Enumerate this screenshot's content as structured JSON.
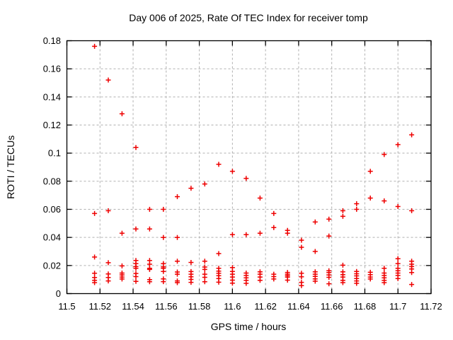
{
  "chart_data": {
    "type": "scatter",
    "title": "Day 006 of 2025, Rate Of TEC Index for receiver tomp",
    "xlabel": "GPS time / hours",
    "ylabel": "ROTI / TECUs",
    "xlim": [
      11.5,
      11.72
    ],
    "ylim": [
      0,
      0.18
    ],
    "xticks": [
      11.5,
      11.52,
      11.54,
      11.56,
      11.58,
      11.6,
      11.62,
      11.64,
      11.66,
      11.68,
      11.7,
      11.72
    ],
    "xtick_labels": [
      "11.5",
      "11.52",
      "11.54",
      "11.56",
      "11.58",
      "11.6",
      "11.62",
      "11.64",
      "11.66",
      "11.68",
      "11.7",
      "11.72"
    ],
    "yticks": [
      0,
      0.02,
      0.04,
      0.06,
      0.08,
      0.1,
      0.12,
      0.14,
      0.16,
      0.18
    ],
    "ytick_labels": [
      "0",
      "0.02",
      "0.04",
      "0.06",
      "0.08",
      "0.1",
      "0.12",
      "0.14",
      "0.16",
      "0.18"
    ],
    "grid": true,
    "legend": "none",
    "marker": "plus",
    "marker_color": "#ee0000",
    "grid_color": "#b0b0b0",
    "border_color": "#000000",
    "series": [
      {
        "name": "ROTI",
        "points": [
          [
            11.5167,
            0.176
          ],
          [
            11.5167,
            0.057
          ],
          [
            11.5167,
            0.026
          ],
          [
            11.5167,
            0.0145
          ],
          [
            11.5167,
            0.0115
          ],
          [
            11.5167,
            0.0095
          ],
          [
            11.5167,
            0.0078
          ],
          [
            11.525,
            0.152
          ],
          [
            11.525,
            0.059
          ],
          [
            11.525,
            0.022
          ],
          [
            11.525,
            0.014
          ],
          [
            11.525,
            0.0115
          ],
          [
            11.525,
            0.009
          ],
          [
            11.5333,
            0.128
          ],
          [
            11.5333,
            0.043
          ],
          [
            11.5333,
            0.0197
          ],
          [
            11.5333,
            0.0146
          ],
          [
            11.5333,
            0.0133
          ],
          [
            11.5333,
            0.0118
          ],
          [
            11.5333,
            0.0104
          ],
          [
            11.5417,
            0.104
          ],
          [
            11.5417,
            0.046
          ],
          [
            11.5417,
            0.0236
          ],
          [
            11.5417,
            0.0214
          ],
          [
            11.5417,
            0.0192
          ],
          [
            11.5417,
            0.018
          ],
          [
            11.5417,
            0.0143
          ],
          [
            11.5417,
            0.0121
          ],
          [
            11.5417,
            0.0087
          ],
          [
            11.55,
            0.06
          ],
          [
            11.55,
            0.046
          ],
          [
            11.55,
            0.0236
          ],
          [
            11.55,
            0.0209
          ],
          [
            11.55,
            0.018
          ],
          [
            11.55,
            0.0172
          ],
          [
            11.55,
            0.01
          ],
          [
            11.55,
            0.0084
          ],
          [
            11.5583,
            0.06
          ],
          [
            11.5583,
            0.04
          ],
          [
            11.5583,
            0.0214
          ],
          [
            11.5583,
            0.019
          ],
          [
            11.5583,
            0.018
          ],
          [
            11.5583,
            0.0158
          ],
          [
            11.5583,
            0.0105
          ],
          [
            11.5583,
            0.0085
          ],
          [
            11.5667,
            0.069
          ],
          [
            11.5667,
            0.04
          ],
          [
            11.5667,
            0.0231
          ],
          [
            11.5667,
            0.0154
          ],
          [
            11.5667,
            0.0138
          ],
          [
            11.5667,
            0.009
          ],
          [
            11.5667,
            0.0078
          ],
          [
            11.575,
            0.075
          ],
          [
            11.575,
            0.0222
          ],
          [
            11.575,
            0.0157
          ],
          [
            11.575,
            0.0138
          ],
          [
            11.575,
            0.012
          ],
          [
            11.575,
            0.0101
          ],
          [
            11.575,
            0.008
          ],
          [
            11.5833,
            0.078
          ],
          [
            11.5833,
            0.0231
          ],
          [
            11.5833,
            0.0189
          ],
          [
            11.5833,
            0.0172
          ],
          [
            11.5833,
            0.0138
          ],
          [
            11.5833,
            0.0116
          ],
          [
            11.5833,
            0.0084
          ],
          [
            11.5917,
            0.092
          ],
          [
            11.5917,
            0.0285
          ],
          [
            11.5917,
            0.018
          ],
          [
            11.5917,
            0.016
          ],
          [
            11.5917,
            0.0145
          ],
          [
            11.5917,
            0.0127
          ],
          [
            11.5917,
            0.0107
          ],
          [
            11.5917,
            0.0081
          ],
          [
            11.6,
            0.087
          ],
          [
            11.6,
            0.042
          ],
          [
            11.6,
            0.0185
          ],
          [
            11.6,
            0.0158
          ],
          [
            11.6,
            0.0138
          ],
          [
            11.6,
            0.0118
          ],
          [
            11.6,
            0.0096
          ],
          [
            11.6,
            0.0074
          ],
          [
            11.6083,
            0.082
          ],
          [
            11.6083,
            0.042
          ],
          [
            11.6083,
            0.0146
          ],
          [
            11.6083,
            0.0129
          ],
          [
            11.6083,
            0.0112
          ],
          [
            11.6083,
            0.0095
          ],
          [
            11.6083,
            0.0073
          ],
          [
            11.6167,
            0.068
          ],
          [
            11.6167,
            0.043
          ],
          [
            11.6167,
            0.0155
          ],
          [
            11.6167,
            0.0138
          ],
          [
            11.6167,
            0.0118
          ],
          [
            11.6167,
            0.0095
          ],
          [
            11.625,
            0.057
          ],
          [
            11.625,
            0.047
          ],
          [
            11.625,
            0.0138
          ],
          [
            11.625,
            0.0121
          ],
          [
            11.625,
            0.0104
          ],
          [
            11.6333,
            0.045
          ],
          [
            11.6333,
            0.043
          ],
          [
            11.6333,
            0.0151
          ],
          [
            11.6333,
            0.0138
          ],
          [
            11.6333,
            0.0127
          ],
          [
            11.6333,
            0.0117
          ],
          [
            11.6333,
            0.0096
          ],
          [
            11.6417,
            0.038
          ],
          [
            11.6417,
            0.033
          ],
          [
            11.6417,
            0.0145
          ],
          [
            11.6417,
            0.012
          ],
          [
            11.6417,
            0.008
          ],
          [
            11.6417,
            0.0057
          ],
          [
            11.65,
            0.051
          ],
          [
            11.65,
            0.03
          ],
          [
            11.65,
            0.0155
          ],
          [
            11.65,
            0.0138
          ],
          [
            11.65,
            0.0122
          ],
          [
            11.65,
            0.0105
          ],
          [
            11.65,
            0.0088
          ],
          [
            11.6583,
            0.053
          ],
          [
            11.6583,
            0.041
          ],
          [
            11.6583,
            0.0163
          ],
          [
            11.6583,
            0.015
          ],
          [
            11.6583,
            0.0133
          ],
          [
            11.6583,
            0.0116
          ],
          [
            11.6583,
            0.007
          ],
          [
            11.6667,
            0.059
          ],
          [
            11.6667,
            0.055
          ],
          [
            11.6667,
            0.0202
          ],
          [
            11.6667,
            0.0155
          ],
          [
            11.6667,
            0.0135
          ],
          [
            11.6667,
            0.0118
          ],
          [
            11.6667,
            0.0095
          ],
          [
            11.6667,
            0.0078
          ],
          [
            11.675,
            0.064
          ],
          [
            11.675,
            0.06
          ],
          [
            11.675,
            0.0158
          ],
          [
            11.675,
            0.0141
          ],
          [
            11.675,
            0.0126
          ],
          [
            11.675,
            0.0107
          ],
          [
            11.675,
            0.009
          ],
          [
            11.675,
            0.0073
          ],
          [
            11.6833,
            0.087
          ],
          [
            11.6833,
            0.068
          ],
          [
            11.6833,
            0.0152
          ],
          [
            11.6833,
            0.0135
          ],
          [
            11.6833,
            0.0118
          ],
          [
            11.6833,
            0.0104
          ],
          [
            11.6917,
            0.099
          ],
          [
            11.6917,
            0.066
          ],
          [
            11.6917,
            0.018
          ],
          [
            11.6917,
            0.0146
          ],
          [
            11.6917,
            0.0129
          ],
          [
            11.6917,
            0.0112
          ],
          [
            11.6917,
            0.0095
          ],
          [
            11.6917,
            0.0078
          ],
          [
            11.7,
            0.106
          ],
          [
            11.7,
            0.062
          ],
          [
            11.7,
            0.0248
          ],
          [
            11.7,
            0.0214
          ],
          [
            11.7,
            0.018
          ],
          [
            11.7,
            0.0163
          ],
          [
            11.7,
            0.0146
          ],
          [
            11.7,
            0.0129
          ],
          [
            11.7,
            0.0107
          ],
          [
            11.7083,
            0.113
          ],
          [
            11.7083,
            0.059
          ],
          [
            11.7083,
            0.0231
          ],
          [
            11.7083,
            0.0209
          ],
          [
            11.7083,
            0.0192
          ],
          [
            11.7083,
            0.0175
          ],
          [
            11.7083,
            0.015
          ],
          [
            11.7083,
            0.0065
          ]
        ]
      }
    ]
  }
}
